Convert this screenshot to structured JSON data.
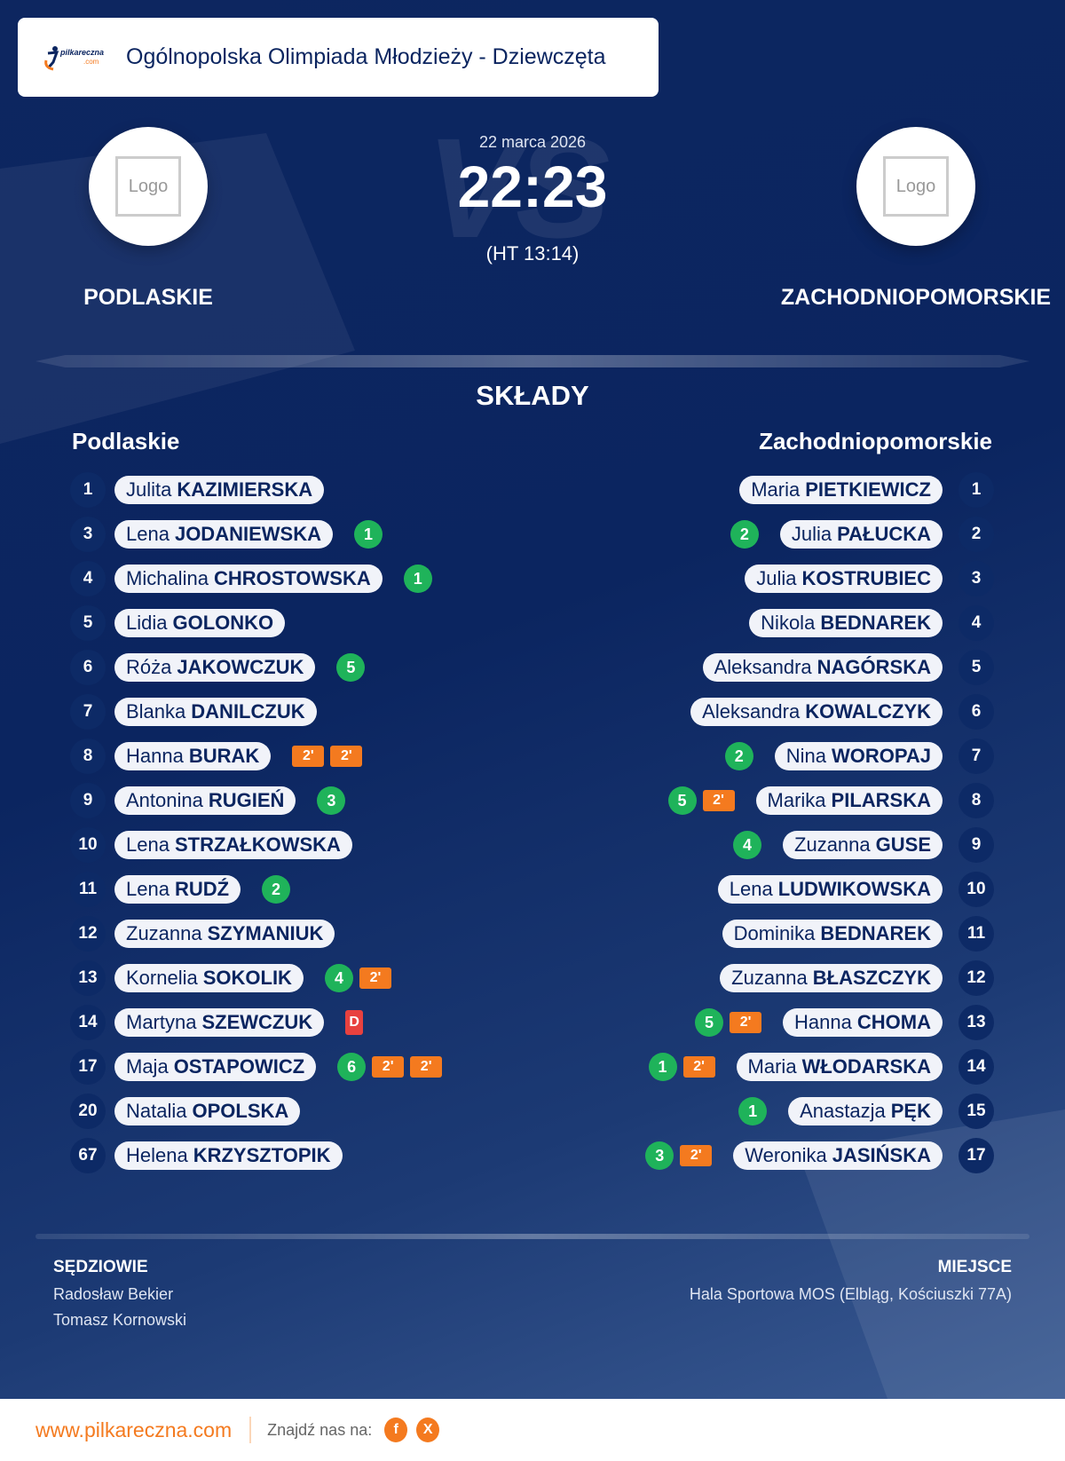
{
  "header": {
    "brand": "pilkareczna",
    "brand_suffix": ".com",
    "title": "Ogólnopolska Olimpiada Młodzieży - Dziewczęta"
  },
  "match": {
    "date": "22 marca 2026",
    "score": "22:23",
    "halftime": "(HT 13:14)",
    "vs": "VS",
    "logo_placeholder": "Logo"
  },
  "home": {
    "name": "PODLASKIE",
    "label": "Podlaskie"
  },
  "away": {
    "name": "ZACHODNIOPOMORSKIE",
    "label": "Zachodniopomorskie"
  },
  "section_title": "SKŁADY",
  "home_players": [
    {
      "num": "1",
      "first": "Julita",
      "last": "KAZIMIERSKA",
      "events": []
    },
    {
      "num": "3",
      "first": "Lena",
      "last": "JODANIEWSKA",
      "events": [
        {
          "type": "goal",
          "value": "1"
        }
      ]
    },
    {
      "num": "4",
      "first": "Michalina",
      "last": "CHROSTOWSKA",
      "events": [
        {
          "type": "goal",
          "value": "1"
        }
      ]
    },
    {
      "num": "5",
      "first": "Lidia",
      "last": "GOLONKO",
      "events": []
    },
    {
      "num": "6",
      "first": "Róża",
      "last": "JAKOWCZUK",
      "events": [
        {
          "type": "goal",
          "value": "5"
        }
      ]
    },
    {
      "num": "7",
      "first": "Blanka",
      "last": "DANILCZUK",
      "events": []
    },
    {
      "num": "8",
      "first": "Hanna",
      "last": "BURAK",
      "events": [
        {
          "type": "susp",
          "value": "2'"
        },
        {
          "type": "susp",
          "value": "2'"
        }
      ]
    },
    {
      "num": "9",
      "first": "Antonina",
      "last": "RUGIEŃ",
      "events": [
        {
          "type": "goal",
          "value": "3"
        }
      ]
    },
    {
      "num": "10",
      "first": "Lena",
      "last": "STRZAŁKOWSKA",
      "events": []
    },
    {
      "num": "11",
      "first": "Lena",
      "last": "RUDŹ",
      "events": [
        {
          "type": "goal",
          "value": "2"
        }
      ]
    },
    {
      "num": "12",
      "first": "Zuzanna",
      "last": "SZYMANIUK",
      "events": []
    },
    {
      "num": "13",
      "first": "Kornelia",
      "last": "SOKOLIK",
      "events": [
        {
          "type": "goal",
          "value": "4"
        },
        {
          "type": "susp",
          "value": "2'"
        }
      ]
    },
    {
      "num": "14",
      "first": "Martyna",
      "last": "SZEWCZUK",
      "events": [
        {
          "type": "disq",
          "value": "D"
        }
      ]
    },
    {
      "num": "17",
      "first": "Maja",
      "last": "OSTAPOWICZ",
      "events": [
        {
          "type": "goal",
          "value": "6"
        },
        {
          "type": "susp",
          "value": "2'"
        },
        {
          "type": "susp",
          "value": "2'"
        }
      ]
    },
    {
      "num": "20",
      "first": "Natalia",
      "last": "OPOLSKA",
      "events": []
    },
    {
      "num": "67",
      "first": "Helena",
      "last": "KRZYSZTOPIK",
      "events": []
    }
  ],
  "away_players": [
    {
      "num": "1",
      "first": "Maria",
      "last": "PIETKIEWICZ",
      "events": []
    },
    {
      "num": "2",
      "first": "Julia",
      "last": "PAŁUCKA",
      "events": [
        {
          "type": "goal",
          "value": "2"
        }
      ]
    },
    {
      "num": "3",
      "first": "Julia",
      "last": "KOSTRUBIEC",
      "events": []
    },
    {
      "num": "4",
      "first": "Nikola",
      "last": "BEDNAREK",
      "events": []
    },
    {
      "num": "5",
      "first": "Aleksandra",
      "last": "NAGÓRSKA",
      "events": []
    },
    {
      "num": "6",
      "first": "Aleksandra",
      "last": "KOWALCZYK",
      "events": []
    },
    {
      "num": "7",
      "first": "Nina",
      "last": "WOROPAJ",
      "events": [
        {
          "type": "goal",
          "value": "2"
        }
      ]
    },
    {
      "num": "8",
      "first": "Marika",
      "last": "PILARSKA",
      "events": [
        {
          "type": "goal",
          "value": "5"
        },
        {
          "type": "susp",
          "value": "2'"
        }
      ]
    },
    {
      "num": "9",
      "first": "Zuzanna",
      "last": "GUSE",
      "events": [
        {
          "type": "goal",
          "value": "4"
        }
      ]
    },
    {
      "num": "10",
      "first": "Lena",
      "last": "LUDWIKOWSKA",
      "events": []
    },
    {
      "num": "11",
      "first": "Dominika",
      "last": "BEDNAREK",
      "events": []
    },
    {
      "num": "12",
      "first": "Zuzanna",
      "last": "BŁASZCZYK",
      "events": []
    },
    {
      "num": "13",
      "first": "Hanna",
      "last": "CHOMA",
      "events": [
        {
          "type": "goal",
          "value": "5"
        },
        {
          "type": "susp",
          "value": "2'"
        }
      ]
    },
    {
      "num": "14",
      "first": "Maria",
      "last": "WŁODARSKA",
      "events": [
        {
          "type": "goal",
          "value": "1"
        },
        {
          "type": "susp",
          "value": "2'"
        }
      ]
    },
    {
      "num": "15",
      "first": "Anastazja",
      "last": "PĘK",
      "events": [
        {
          "type": "goal",
          "value": "1"
        }
      ]
    },
    {
      "num": "17",
      "first": "Weronika",
      "last": "JASIŃSKA",
      "events": [
        {
          "type": "goal",
          "value": "3"
        },
        {
          "type": "susp",
          "value": "2'"
        }
      ]
    }
  ],
  "referees": {
    "title": "SĘDZIOWIE",
    "names": [
      "Radosław Bekier",
      "Tomasz Kornowski"
    ]
  },
  "venue": {
    "title": "MIEJSCE",
    "name": "Hala Sportowa MOS (Elbląg, Kościuszki 77A)"
  },
  "footer": {
    "url": "www.pilkareczna.com",
    "find_label": "Znajdź nas na:",
    "facebook": "f",
    "x": "X"
  },
  "colors": {
    "accent": "#f47a1f",
    "goal": "#1fb35a",
    "disqualification": "#e8413f",
    "navy": "#0b2560"
  }
}
